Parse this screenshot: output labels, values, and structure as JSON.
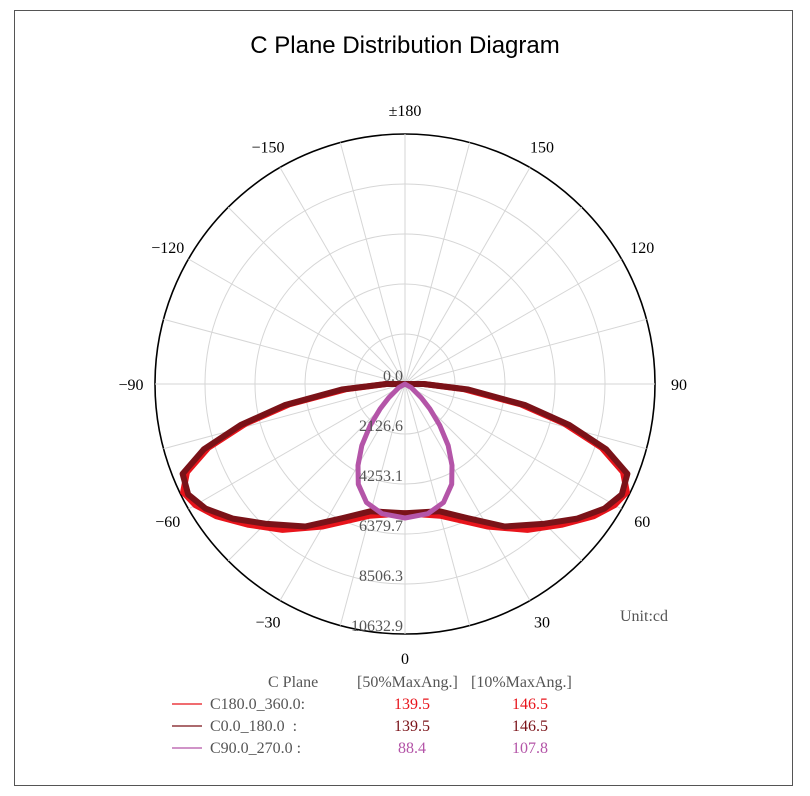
{
  "chart_data": {
    "type": "polar",
    "title": "C Plane Distribution Diagram",
    "unit_label": "Unit:cd",
    "angle_ticks": [
      {
        "angle": 180,
        "label": "±180"
      },
      {
        "angle": 150,
        "label": "150"
      },
      {
        "angle": -150,
        "label": "-150"
      },
      {
        "angle": 120,
        "label": "120"
      },
      {
        "angle": -120,
        "label": "-120"
      },
      {
        "angle": 90,
        "label": "90"
      },
      {
        "angle": -90,
        "label": "-90"
      },
      {
        "angle": 60,
        "label": "60"
      },
      {
        "angle": -60,
        "label": "-60"
      },
      {
        "angle": 30,
        "label": "30"
      },
      {
        "angle": -30,
        "label": "-30"
      },
      {
        "angle": 0,
        "label": "0"
      }
    ],
    "radial_ticks": [
      0.0,
      2126.6,
      4253.1,
      6379.7,
      8506.3,
      10632.9
    ],
    "radial_tick_labels": [
      "0.0",
      "2126.6",
      "4253.1",
      "6379.7",
      "8506.3",
      "10632.9"
    ],
    "rmax": 10632.9,
    "grid": true,
    "legend": {
      "header": {
        "plane": "C Plane",
        "col50": "[50%MaxAng.]",
        "col10": "[10%MaxAng.]"
      },
      "entries": [
        {
          "name": "C180.0_360.0:",
          "val50": "139.5",
          "val10": "146.5",
          "color": "#e8141b"
        },
        {
          "name": "C0.0_180.0  :",
          "val50": "139.5",
          "val10": "146.5",
          "color": "#7a1218"
        },
        {
          "name": "C90.0_270.0 :",
          "val50": "88.4",
          "val10": "107.8",
          "color": "#b455a8"
        }
      ]
    },
    "series": [
      {
        "color": "#e8141b",
        "points": [
          [
            0,
            5500
          ],
          [
            15,
            5800
          ],
          [
            30,
            7000
          ],
          [
            40,
            8100
          ],
          [
            48,
            8950
          ],
          [
            55,
            9800
          ],
          [
            60,
            10300
          ],
          [
            64,
            10500
          ],
          [
            68,
            10000
          ],
          [
            72,
            8800
          ],
          [
            76,
            7000
          ],
          [
            80,
            5000
          ],
          [
            85,
            2500
          ],
          [
            90,
            800
          ],
          [
            93,
            0
          ],
          [
            -93,
            0
          ],
          [
            -90,
            800
          ],
          [
            -85,
            2500
          ],
          [
            -80,
            5000
          ],
          [
            -76,
            7000
          ],
          [
            -72,
            8800
          ],
          [
            -68,
            10000
          ],
          [
            -64,
            10500
          ],
          [
            -60,
            10300
          ],
          [
            -55,
            9800
          ],
          [
            -48,
            8950
          ],
          [
            -40,
            8100
          ],
          [
            -30,
            7000
          ],
          [
            -15,
            5800
          ],
          [
            0,
            5500
          ]
        ]
      },
      {
        "color": "#7a1218",
        "points": [
          [
            0,
            5500
          ],
          [
            15,
            5600
          ],
          [
            25,
            6300
          ],
          [
            35,
            7400
          ],
          [
            45,
            8400
          ],
          [
            52,
            9300
          ],
          [
            58,
            10000
          ],
          [
            63,
            10350
          ],
          [
            68,
            10200
          ],
          [
            72,
            9000
          ],
          [
            76,
            7200
          ],
          [
            80,
            5200
          ],
          [
            85,
            2700
          ],
          [
            90,
            800
          ],
          [
            93,
            0
          ],
          [
            -93,
            0
          ],
          [
            -90,
            800
          ],
          [
            -85,
            2700
          ],
          [
            -80,
            5200
          ],
          [
            -76,
            7200
          ],
          [
            -72,
            9000
          ],
          [
            -68,
            10200
          ],
          [
            -63,
            10350
          ],
          [
            -58,
            10000
          ],
          [
            -52,
            9300
          ],
          [
            -45,
            8400
          ],
          [
            -35,
            7400
          ],
          [
            -25,
            6300
          ],
          [
            -15,
            5600
          ],
          [
            0,
            5500
          ]
        ]
      },
      {
        "color": "#b455a8",
        "points": [
          [
            0,
            5700
          ],
          [
            10,
            5600
          ],
          [
            18,
            5300
          ],
          [
            25,
            4700
          ],
          [
            30,
            4000
          ],
          [
            35,
            3200
          ],
          [
            40,
            2300
          ],
          [
            45,
            1500
          ],
          [
            50,
            900
          ],
          [
            60,
            300
          ],
          [
            70,
            0
          ],
          [
            -70,
            0
          ],
          [
            -60,
            300
          ],
          [
            -50,
            900
          ],
          [
            -45,
            1500
          ],
          [
            -40,
            2300
          ],
          [
            -35,
            3200
          ],
          [
            -30,
            4000
          ],
          [
            -25,
            4700
          ],
          [
            -18,
            5300
          ],
          [
            -10,
            5600
          ],
          [
            0,
            5700
          ]
        ]
      }
    ]
  }
}
